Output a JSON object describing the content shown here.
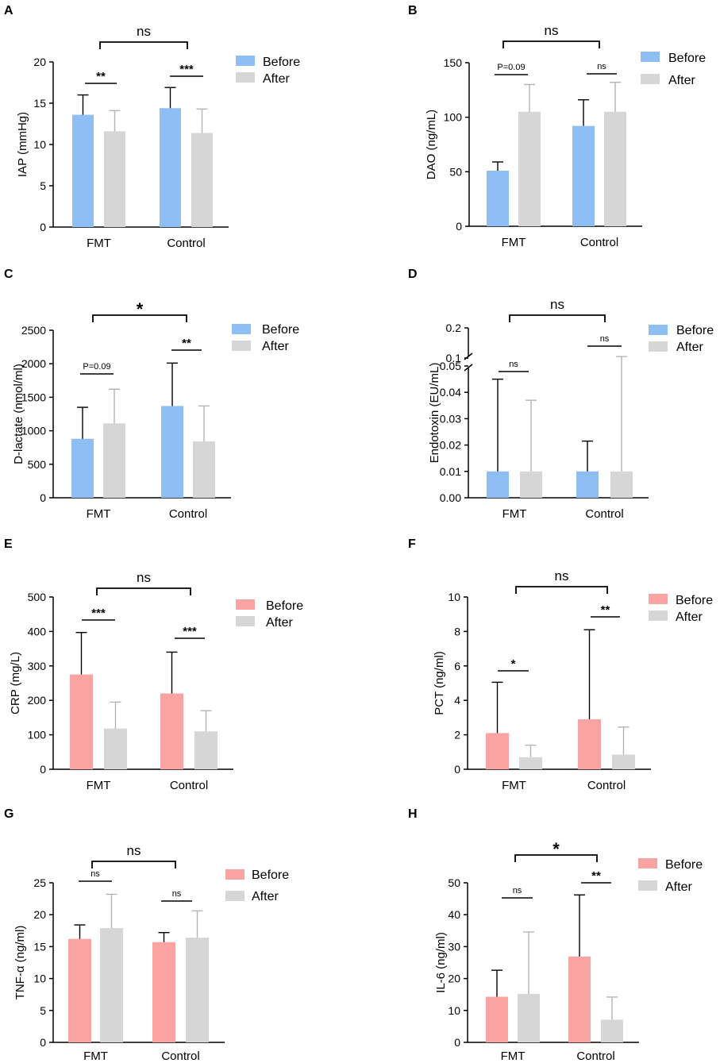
{
  "colors": {
    "blue": "#8fbef5",
    "pink": "#f9a3a3",
    "gray": "#d6d6d6",
    "errGray": "#b4b4b4",
    "axis": "#000000"
  },
  "chart_data": [
    {
      "panel": "A",
      "type": "bar",
      "ylabel": "IAP (mmHg)",
      "categories": [
        "FMT",
        "Control"
      ],
      "ylim": [
        0,
        20
      ],
      "ticks": [
        0,
        5,
        10,
        15,
        20
      ],
      "series": [
        {
          "name": "Before",
          "color": "blue",
          "values": [
            13.6,
            14.4
          ],
          "err": [
            16.0,
            16.9
          ]
        },
        {
          "name": "After",
          "color": "gray",
          "values": [
            11.6,
            11.4
          ],
          "err": [
            14.1,
            14.3
          ]
        }
      ],
      "legend": [
        "Before",
        "After"
      ],
      "within": [
        "**",
        "***"
      ],
      "between": "ns"
    },
    {
      "panel": "B",
      "type": "bar",
      "ylabel": "DAO (ng/mL)",
      "categories": [
        "FMT",
        "Control"
      ],
      "ylim": [
        0,
        150
      ],
      "ticks": [
        0,
        50,
        100,
        150
      ],
      "series": [
        {
          "name": "Before",
          "color": "blue",
          "values": [
            51,
            92
          ],
          "err": [
            59,
            116
          ]
        },
        {
          "name": "After",
          "color": "gray",
          "values": [
            105,
            105
          ],
          "err": [
            130,
            132
          ]
        }
      ],
      "legend": [
        "Before",
        "After"
      ],
      "within": [
        "P=0.09",
        "ns"
      ],
      "between": "ns"
    },
    {
      "panel": "C",
      "type": "bar",
      "ylabel": "D-lactate (nmol/ml)",
      "categories": [
        "FMT",
        "Control"
      ],
      "ylim": [
        0,
        2500
      ],
      "ticks": [
        0,
        500,
        1000,
        1500,
        2000,
        2500
      ],
      "series": [
        {
          "name": "Before",
          "color": "blue",
          "values": [
            880,
            1370
          ],
          "err": [
            1350,
            2010
          ]
        },
        {
          "name": "After",
          "color": "gray",
          "values": [
            1110,
            840
          ],
          "err": [
            1620,
            1370
          ]
        }
      ],
      "legend": [
        "Before",
        "After"
      ],
      "within": [
        "P=0.09",
        "**"
      ],
      "between": "*"
    },
    {
      "panel": "D",
      "type": "bar",
      "ylabel": "Endotoxin (EU/mL)",
      "categories": [
        "FMT",
        "Control"
      ],
      "ylim": [
        0,
        0.2
      ],
      "axis_break": [
        0.05,
        0.1
      ],
      "ticks": [
        0.0,
        0.01,
        0.02,
        0.03,
        0.04,
        0.05,
        0.1,
        0.2
      ],
      "tickLabels": [
        "0.00",
        "0.01",
        "0.02",
        "0.03",
        "0.04",
        "0.05",
        "0.1",
        "0.2"
      ],
      "series": [
        {
          "name": "Before",
          "color": "blue",
          "values": [
            0.01,
            0.01
          ],
          "err": [
            0.045,
            0.0215
          ]
        },
        {
          "name": "After",
          "color": "gray",
          "values": [
            0.01,
            0.01
          ],
          "err": [
            0.037,
            0.105
          ]
        }
      ],
      "legend": [
        "Before",
        "After"
      ],
      "within": [
        "ns",
        "ns"
      ],
      "between": "ns"
    },
    {
      "panel": "E",
      "type": "bar",
      "ylabel": "CRP (mg/L)",
      "categories": [
        "FMT",
        "Control"
      ],
      "ylim": [
        0,
        500
      ],
      "ticks": [
        0,
        100,
        200,
        300,
        400,
        500
      ],
      "series": [
        {
          "name": "Before",
          "color": "pink",
          "values": [
            275,
            220
          ],
          "err": [
            397,
            340
          ]
        },
        {
          "name": "After",
          "color": "gray",
          "values": [
            118,
            110
          ],
          "err": [
            195,
            170
          ]
        }
      ],
      "legend": [
        "Before",
        "After"
      ],
      "within": [
        "***",
        "***"
      ],
      "between": "ns"
    },
    {
      "panel": "F",
      "type": "bar",
      "ylabel": "PCT (ng/ml)",
      "categories": [
        "FMT",
        "Control"
      ],
      "ylim": [
        0,
        10
      ],
      "ticks": [
        0,
        2,
        4,
        6,
        8,
        10
      ],
      "series": [
        {
          "name": "Before",
          "color": "pink",
          "values": [
            2.1,
            2.9
          ],
          "err": [
            5.05,
            8.1
          ]
        },
        {
          "name": "After",
          "color": "gray",
          "values": [
            0.7,
            0.85
          ],
          "err": [
            1.4,
            2.45
          ]
        }
      ],
      "legend": [
        "Before",
        "After"
      ],
      "within": [
        "*",
        "**"
      ],
      "between": "ns"
    },
    {
      "panel": "G",
      "type": "bar",
      "ylabel": "TNF-α (ng/ml)",
      "categories": [
        "FMT",
        "Control"
      ],
      "ylim": [
        0,
        25
      ],
      "ticks": [
        0,
        5,
        10,
        15,
        20,
        25
      ],
      "series": [
        {
          "name": "Before",
          "color": "pink",
          "values": [
            16.2,
            15.7
          ],
          "err": [
            18.4,
            17.2
          ]
        },
        {
          "name": "After",
          "color": "gray",
          "values": [
            17.9,
            16.4
          ],
          "err": [
            23.2,
            20.6
          ]
        }
      ],
      "legend": [
        "Before",
        "After"
      ],
      "within": [
        "ns",
        "ns"
      ],
      "between": "ns"
    },
    {
      "panel": "H",
      "type": "bar",
      "ylabel": "IL-6 (ng/ml)",
      "categories": [
        "FMT",
        "Control"
      ],
      "ylim": [
        0,
        50
      ],
      "ticks": [
        0,
        10,
        20,
        30,
        40,
        50
      ],
      "series": [
        {
          "name": "Before",
          "color": "pink",
          "values": [
            14.3,
            26.9
          ],
          "err": [
            22.6,
            46.2
          ]
        },
        {
          "name": "After",
          "color": "gray",
          "values": [
            15.2,
            7.1
          ],
          "err": [
            34.6,
            14.2
          ]
        }
      ],
      "legend": [
        "Before",
        "After"
      ],
      "within": [
        "ns",
        "**"
      ],
      "between": "*"
    }
  ]
}
